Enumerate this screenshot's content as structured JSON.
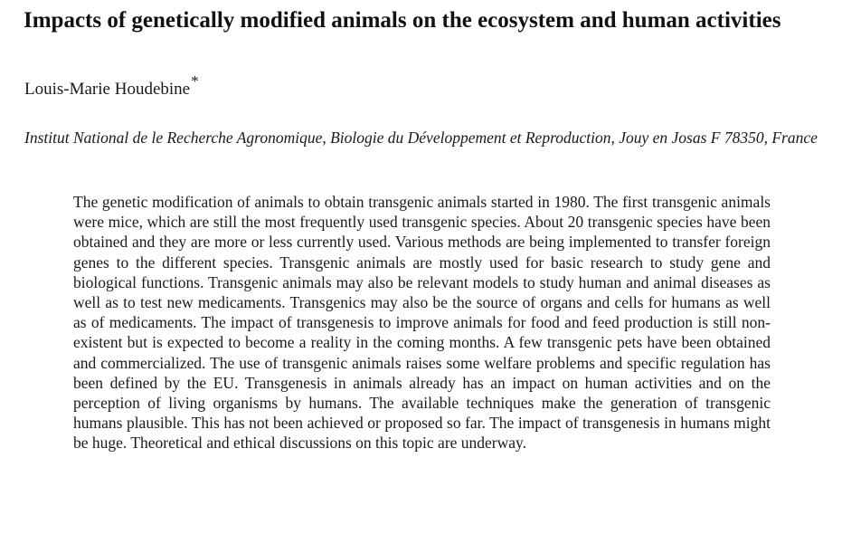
{
  "paper": {
    "title": "Impacts of genetically modified animals on the ecosystem and human activities",
    "author": {
      "name": "Louis-Marie Houdebine",
      "mark": "*"
    },
    "affiliation": "Institut National de le Recherche Agronomique, Biologie du Développement et Reproduction, Jouy en Josas F 78350, France",
    "abstract": "The genetic modification of animals to obtain transgenic animals started in 1980. The first transgenic animals were mice, which are still the most frequently used transgenic species. About 20 transgenic species have been obtained and they are more or less currently used. Various methods are being implemented to transfer foreign genes to the different species. Transgenic animals are mostly used for basic research to study gene and biological functions. Transgenic animals may also be relevant models to study human and animal diseases as well as to test new medicaments. Transgenics may also be the source of organs and cells for humans as well as of medicaments. The impact of transgenesis to improve animals for food and feed production is still non-existent but is expected to become a reality in the coming months. A few transgenic pets have been obtained and commercialized. The use of transgenic animals raises some welfare problems and specific regulation has been defined by the EU. Transgenesis in animals already has an impact on human activities and on the perception of living organisms by humans. The available techniques make the generation of transgenic humans plausible. This has not been achieved or proposed so far. The impact of transgenesis in humans might be huge. Theoretical and ethical discussions on this topic are underway."
  }
}
